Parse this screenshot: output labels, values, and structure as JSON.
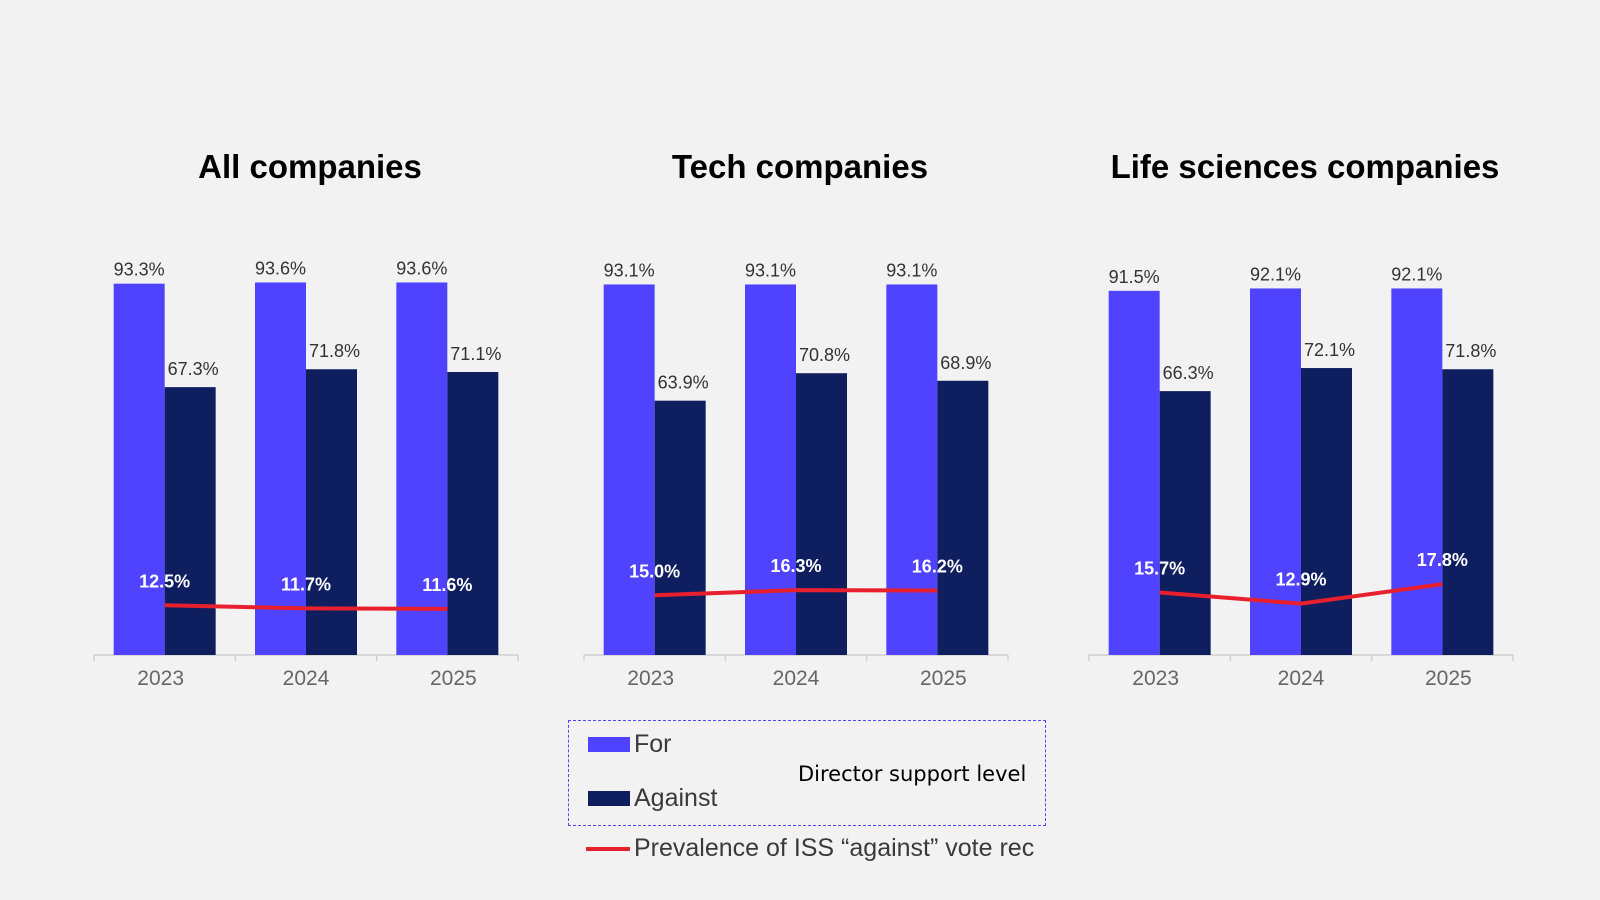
{
  "colors": {
    "for": "#5043ff",
    "against": "#0e1e5e",
    "line": "#e8202e"
  },
  "legend": {
    "for_label": "For",
    "against_label": "Against",
    "group_caption": "Director support level",
    "line_label": "Prevalence of ISS “against” vote rec"
  },
  "chart_data": [
    {
      "type": "bar",
      "title": "All companies",
      "categories": [
        "2023",
        "2024",
        "2025"
      ],
      "series": [
        {
          "name": "For",
          "values": [
            93.3,
            93.6,
            93.6
          ],
          "labels": [
            "93.3%",
            "93.6%",
            "93.6%"
          ]
        },
        {
          "name": "Against",
          "values": [
            67.3,
            71.8,
            71.1
          ],
          "labels": [
            "67.3%",
            "71.8%",
            "71.1%"
          ]
        },
        {
          "name": "Prevalence of ISS “against” vote rec",
          "type": "line",
          "values": [
            12.5,
            11.7,
            11.6
          ],
          "labels": [
            "12.5%",
            "11.7%",
            "11.6%"
          ]
        }
      ],
      "ylim": [
        0,
        100
      ]
    },
    {
      "type": "bar",
      "title": "Tech companies",
      "categories": [
        "2023",
        "2024",
        "2025"
      ],
      "series": [
        {
          "name": "For",
          "values": [
            93.1,
            93.1,
            93.1
          ],
          "labels": [
            "93.1%",
            "93.1%",
            "93.1%"
          ]
        },
        {
          "name": "Against",
          "values": [
            63.9,
            70.8,
            68.9
          ],
          "labels": [
            "63.9%",
            "70.8%",
            "68.9%"
          ]
        },
        {
          "name": "Prevalence of ISS “against” vote rec",
          "type": "line",
          "values": [
            15.0,
            16.3,
            16.2
          ],
          "labels": [
            "15.0%",
            "16.3%",
            "16.2%"
          ]
        }
      ],
      "ylim": [
        0,
        100
      ]
    },
    {
      "type": "bar",
      "title": "Life sciences companies",
      "categories": [
        "2023",
        "2024",
        "2025"
      ],
      "series": [
        {
          "name": "For",
          "values": [
            91.5,
            92.1,
            92.1
          ],
          "labels": [
            "91.5%",
            "92.1%",
            "92.1%"
          ]
        },
        {
          "name": "Against",
          "values": [
            66.3,
            72.1,
            71.8
          ],
          "labels": [
            "66.3%",
            "72.1%",
            "71.8%"
          ]
        },
        {
          "name": "Prevalence of ISS “against” vote rec",
          "type": "line",
          "values": [
            15.7,
            12.9,
            17.8
          ],
          "labels": [
            "15.7%",
            "12.9%",
            "17.8%"
          ]
        }
      ],
      "ylim": [
        0,
        100
      ]
    }
  ]
}
